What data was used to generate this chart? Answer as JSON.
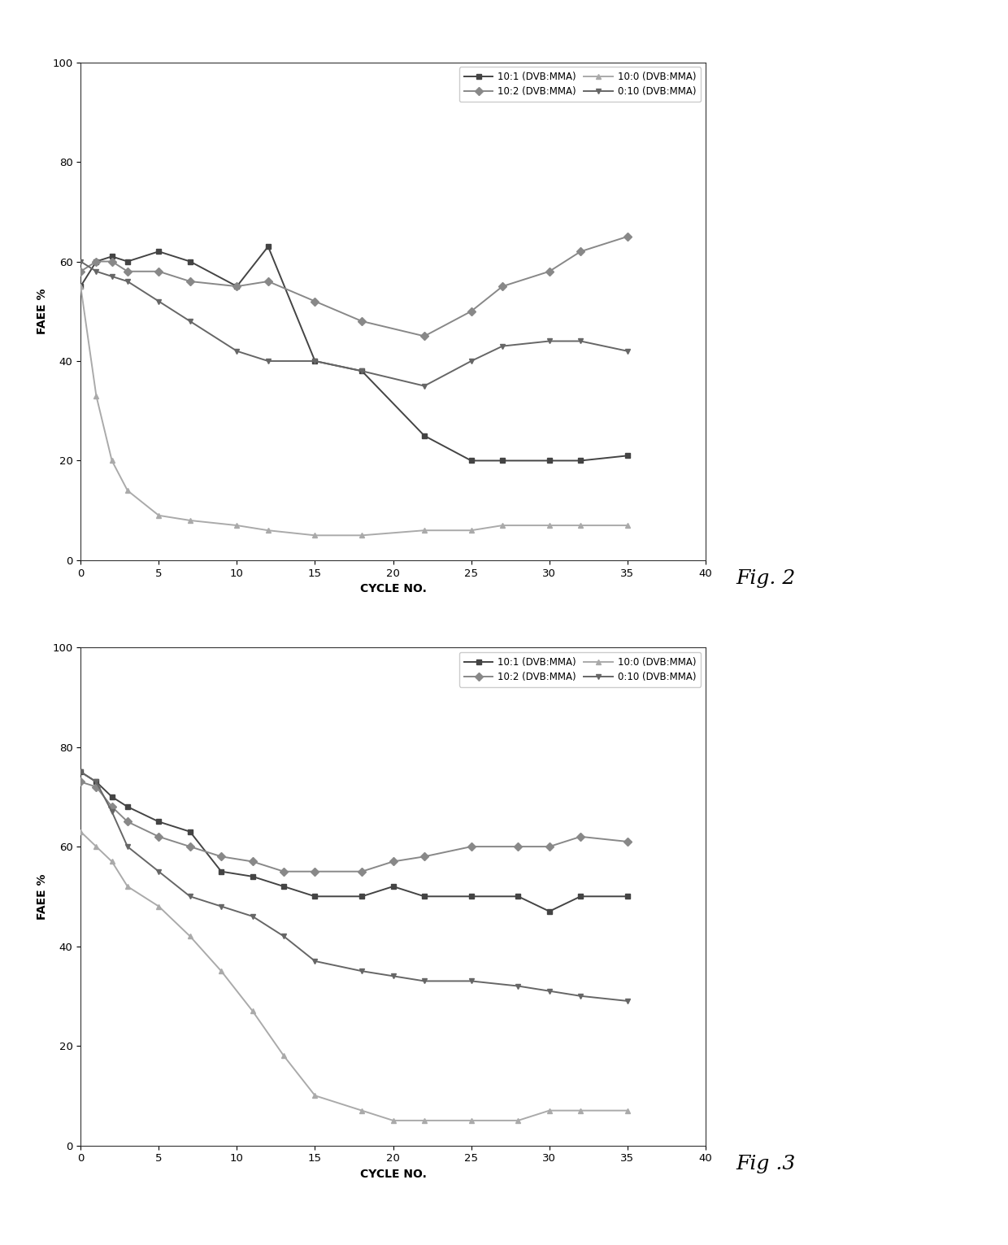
{
  "fig2": {
    "series": [
      {
        "label": "10:1 (DVB:MMA)",
        "x": [
          0,
          1,
          2,
          3,
          5,
          7,
          10,
          12,
          15,
          18,
          22,
          25,
          27,
          30,
          32,
          35
        ],
        "y": [
          55,
          60,
          61,
          60,
          62,
          60,
          55,
          63,
          40,
          38,
          25,
          20,
          20,
          20,
          20,
          21
        ]
      },
      {
        "label": "10:2 (DVB:MMA)",
        "x": [
          0,
          1,
          2,
          3,
          5,
          7,
          10,
          12,
          15,
          18,
          22,
          25,
          27,
          30,
          32,
          35
        ],
        "y": [
          58,
          60,
          60,
          58,
          58,
          56,
          55,
          56,
          52,
          48,
          45,
          50,
          55,
          58,
          62,
          65
        ]
      },
      {
        "label": "10:0 (DVB:MMA)",
        "x": [
          0,
          1,
          2,
          3,
          5,
          7,
          10,
          12,
          15,
          18,
          22,
          25,
          27,
          30,
          32,
          35
        ],
        "y": [
          55,
          33,
          20,
          14,
          9,
          8,
          7,
          6,
          5,
          5,
          6,
          6,
          7,
          7,
          7,
          7
        ]
      },
      {
        "label": "0:10 (DVB:MMA)",
        "x": [
          0,
          1,
          2,
          3,
          5,
          7,
          10,
          12,
          15,
          18,
          22,
          25,
          27,
          30,
          32,
          35
        ],
        "y": [
          60,
          58,
          57,
          56,
          52,
          48,
          42,
          40,
          40,
          38,
          35,
          40,
          43,
          44,
          44,
          42
        ]
      }
    ],
    "xlabel": "CYCLE NO.",
    "ylabel": "FAEE %",
    "xlim": [
      0,
      40
    ],
    "ylim": [
      0,
      100
    ],
    "xticks": [
      0,
      5,
      10,
      15,
      20,
      25,
      30,
      35,
      40
    ],
    "yticks": [
      0,
      20,
      40,
      60,
      80,
      100
    ],
    "fig_label": "Fig. 2"
  },
  "fig3": {
    "series": [
      {
        "label": "10:1 (DVB:MMA)",
        "x": [
          0,
          1,
          2,
          3,
          5,
          7,
          9,
          11,
          13,
          15,
          18,
          20,
          22,
          25,
          28,
          30,
          32,
          35
        ],
        "y": [
          75,
          73,
          70,
          68,
          65,
          63,
          55,
          54,
          52,
          50,
          50,
          52,
          50,
          50,
          50,
          47,
          50,
          50
        ]
      },
      {
        "label": "10:2 (DVB:MMA)",
        "x": [
          0,
          1,
          2,
          3,
          5,
          7,
          9,
          11,
          13,
          15,
          18,
          20,
          22,
          25,
          28,
          30,
          32,
          35
        ],
        "y": [
          73,
          72,
          68,
          65,
          62,
          60,
          58,
          57,
          55,
          55,
          55,
          57,
          58,
          60,
          60,
          60,
          62,
          61
        ]
      },
      {
        "label": "10:0 (DVB:MMA)",
        "x": [
          0,
          1,
          2,
          3,
          5,
          7,
          9,
          11,
          13,
          15,
          18,
          20,
          22,
          25,
          28,
          30,
          32,
          35
        ],
        "y": [
          63,
          60,
          57,
          52,
          48,
          42,
          35,
          27,
          18,
          10,
          7,
          5,
          5,
          5,
          5,
          7,
          7,
          7
        ]
      },
      {
        "label": "0:10 (DVB:MMA)",
        "x": [
          0,
          1,
          2,
          3,
          5,
          7,
          9,
          11,
          13,
          15,
          18,
          20,
          22,
          25,
          28,
          30,
          32,
          35
        ],
        "y": [
          75,
          73,
          67,
          60,
          55,
          50,
          48,
          46,
          42,
          37,
          35,
          34,
          33,
          33,
          32,
          31,
          30,
          29
        ]
      }
    ],
    "xlabel": "CYCLE NO.",
    "ylabel": "FAEE %",
    "xlim": [
      0,
      40
    ],
    "ylim": [
      0,
      100
    ],
    "xticks": [
      0,
      5,
      10,
      15,
      20,
      25,
      30,
      35,
      40
    ],
    "yticks": [
      0,
      20,
      40,
      60,
      80,
      100
    ],
    "fig_label": "Fig .3"
  },
  "line_color": "#555555",
  "marker_styles": [
    "s",
    "D",
    "^",
    "v"
  ],
  "marker_size": 5,
  "line_width": 1.4,
  "background_color": "#ffffff",
  "legend_fontsize": 8.5,
  "axis_fontsize": 10,
  "tick_fontsize": 9.5,
  "fig_label_fontsize": 18
}
